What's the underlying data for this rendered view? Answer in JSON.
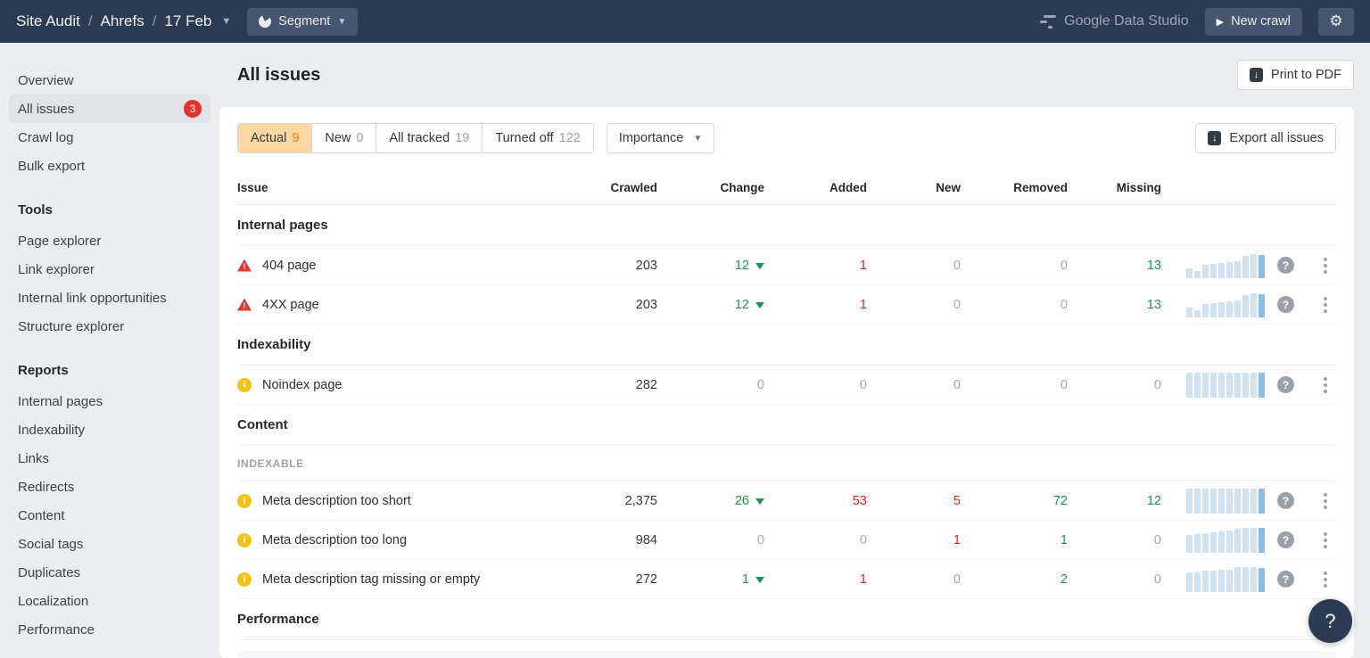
{
  "topbar": {
    "breadcrumb": [
      "Site Audit",
      "Ahrefs",
      "17 Feb"
    ],
    "segment_label": "Segment",
    "gds_label": "Google Data Studio",
    "new_crawl_label": "New crawl",
    "gear_icon": "gear-icon"
  },
  "sidebar": {
    "items": [
      {
        "label": "Overview",
        "active": false
      },
      {
        "label": "All issues",
        "active": true,
        "badge": "3"
      },
      {
        "label": "Crawl log",
        "active": false
      },
      {
        "label": "Bulk export",
        "active": false
      }
    ],
    "sections": [
      {
        "title": "Tools",
        "items": [
          "Page explorer",
          "Link explorer",
          "Internal link opportunities",
          "Structure explorer"
        ]
      },
      {
        "title": "Reports",
        "items": [
          "Internal pages",
          "Indexability",
          "Links",
          "Redirects",
          "Content",
          "Social tags",
          "Duplicates",
          "Localization",
          "Performance"
        ]
      }
    ]
  },
  "main": {
    "title": "All issues",
    "print_label": "Print to PDF",
    "export_label": "Export all issues",
    "importance_label": "Importance",
    "tabs": [
      {
        "label": "Actual",
        "count": "9",
        "active": true
      },
      {
        "label": "New",
        "count": "0",
        "active": false
      },
      {
        "label": "All tracked",
        "count": "19",
        "active": false
      },
      {
        "label": "Turned off",
        "count": "122",
        "active": false
      }
    ],
    "columns": [
      "Issue",
      "Crawled",
      "Change",
      "Added",
      "New",
      "Removed",
      "Missing"
    ],
    "groups": [
      {
        "title": "Internal pages",
        "rows": [
          {
            "icon": "error",
            "name": "404 page",
            "crawled": "203",
            "change": {
              "v": "12",
              "c": "green",
              "tri": "down"
            },
            "added": {
              "v": "1",
              "c": "red"
            },
            "new": {
              "v": "0",
              "c": "gray"
            },
            "removed": {
              "v": "0",
              "c": "gray"
            },
            "missing": {
              "v": "13",
              "c": "green"
            },
            "spark": [
              38,
              30,
              55,
              58,
              60,
              63,
              68,
              88,
              95,
              92
            ]
          },
          {
            "icon": "error",
            "name": "4XX page",
            "crawled": "203",
            "change": {
              "v": "12",
              "c": "green",
              "tri": "down"
            },
            "added": {
              "v": "1",
              "c": "red"
            },
            "new": {
              "v": "0",
              "c": "gray"
            },
            "removed": {
              "v": "0",
              "c": "gray"
            },
            "missing": {
              "v": "13",
              "c": "green"
            },
            "spark": [
              38,
              30,
              55,
              58,
              60,
              63,
              68,
              88,
              95,
              92
            ]
          }
        ]
      },
      {
        "title": "Indexability",
        "rows": [
          {
            "icon": "notice",
            "name": "Noindex page",
            "crawled": "282",
            "change": {
              "v": "0",
              "c": "gray"
            },
            "added": {
              "v": "0",
              "c": "gray"
            },
            "new": {
              "v": "0",
              "c": "gray"
            },
            "removed": {
              "v": "0",
              "c": "gray"
            },
            "missing": {
              "v": "0",
              "c": "gray"
            },
            "spark": [
              100,
              100,
              100,
              100,
              100,
              100,
              100,
              100,
              100,
              100
            ]
          }
        ]
      },
      {
        "title": "Content",
        "subsection": "INDEXABLE",
        "rows": [
          {
            "icon": "notice",
            "name": "Meta description too short",
            "crawled": "2,375",
            "change": {
              "v": "26",
              "c": "green",
              "tri": "down"
            },
            "added": {
              "v": "53",
              "c": "red"
            },
            "new": {
              "v": "5",
              "c": "red"
            },
            "removed": {
              "v": "72",
              "c": "green"
            },
            "missing": {
              "v": "12",
              "c": "green"
            },
            "spark": [
              100,
              100,
              100,
              100,
              100,
              100,
              100,
              100,
              100,
              100
            ]
          },
          {
            "icon": "notice",
            "name": "Meta description too long",
            "crawled": "984",
            "change": {
              "v": "0",
              "c": "gray"
            },
            "added": {
              "v": "0",
              "c": "gray"
            },
            "new": {
              "v": "1",
              "c": "red"
            },
            "removed": {
              "v": "1",
              "c": "green"
            },
            "missing": {
              "v": "0",
              "c": "gray"
            },
            "spark": [
              72,
              75,
              78,
              82,
              86,
              90,
              95,
              100,
              100,
              100
            ]
          },
          {
            "icon": "notice",
            "name": "Meta description tag missing or empty",
            "crawled": "272",
            "change": {
              "v": "1",
              "c": "green",
              "tri": "down"
            },
            "added": {
              "v": "1",
              "c": "red"
            },
            "new": {
              "v": "0",
              "c": "gray"
            },
            "removed": {
              "v": "2",
              "c": "green"
            },
            "missing": {
              "v": "0",
              "c": "gray"
            },
            "spark": [
              80,
              80,
              84,
              84,
              88,
              90,
              100,
              100,
              100,
              98
            ]
          }
        ]
      },
      {
        "title": "Performance",
        "rows": []
      }
    ]
  },
  "help_bubble": "?"
}
